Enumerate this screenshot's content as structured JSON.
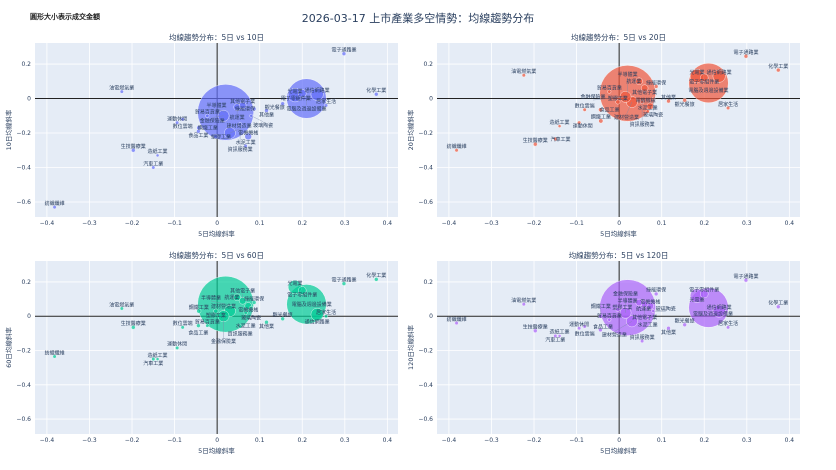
{
  "title": "2026-03-17 上市產業多空情勢：均線趨勢分布",
  "note": "圓形大小表示成交金額",
  "chart_data": {
    "type": "scatter",
    "xlabel": "5日均線斜率",
    "xlim": [
      -0.428,
      0.425
    ],
    "ylim": [
      -0.687,
      0.322
    ],
    "xticks": [
      "−0.4",
      "−0.3",
      "−0.2",
      "−0.1",
      "0",
      "0.1",
      "0.2",
      "0.3",
      "0.4"
    ],
    "xtick_values": [
      -0.4,
      -0.3,
      -0.2,
      -0.1,
      0,
      0.1,
      0.2,
      0.3,
      0.4
    ],
    "yticks": [
      "0.2",
      "0",
      "−0.2",
      "−0.4",
      "−0.6"
    ],
    "ytick_values": [
      0.2,
      0,
      -0.2,
      -0.4,
      -0.6
    ],
    "grid": true,
    "size_meaning": "成交金額 (relative)",
    "panels": [
      {
        "title": "均線趨勢分布：5日 vs 10日",
        "ylabel": "10日均線斜率",
        "key": "y10",
        "color": "#636efa"
      },
      {
        "title": "均線趨勢分布：5日 vs 20日",
        "ylabel": "20日均線斜率",
        "key": "y20",
        "color": "#ef553b"
      },
      {
        "title": "均線趨勢分布：5日 vs 60日",
        "ylabel": "60日均線斜率",
        "key": "y60",
        "color": "#00cc96"
      },
      {
        "title": "均線趨勢分布：5日 vs 120日",
        "ylabel": "120日均線斜率",
        "key": "y120",
        "color": "#ab63fa"
      }
    ],
    "points": [
      {
        "name": "電子通路業",
        "x": 0.298,
        "y10": 0.26,
        "y20": 0.245,
        "y60": 0.19,
        "y120": 0.21,
        "size": 0.5
      },
      {
        "name": "電子零組件業",
        "x": 0.2,
        "y10": 0.03,
        "y20": 0.12,
        "y60": 0.15,
        "y120": 0.13,
        "size": 2
      },
      {
        "name": "光電業",
        "x": 0.183,
        "y10": 0.02,
        "y20": 0.13,
        "y60": 0.17,
        "y120": 0.12,
        "size": 6
      },
      {
        "name": "電腦及週邊設備業",
        "x": 0.21,
        "y10": 0.0,
        "y20": 0.09,
        "y60": 0.07,
        "y120": 0.05,
        "size": 50
      },
      {
        "name": "通信網路業",
        "x": 0.235,
        "y10": 0.025,
        "y20": 0.13,
        "y60": 0.01,
        "y120": 0.03,
        "size": 5
      },
      {
        "name": "化學工業",
        "x": 0.374,
        "y10": 0.025,
        "y20": 0.165,
        "y60": 0.215,
        "y120": 0.055,
        "size": 0.5
      },
      {
        "name": "居家生活",
        "x": 0.256,
        "y10": -0.04,
        "y20": -0.055,
        "y60": 0.0,
        "y120": -0.065,
        "size": 0.4
      },
      {
        "name": "觀光餐旅",
        "x": 0.154,
        "y10": -0.03,
        "y20": -0.01,
        "y60": -0.015,
        "y120": -0.05,
        "size": 0.5
      },
      {
        "name": "其他業",
        "x": 0.116,
        "y10": -0.07,
        "y20": -0.015,
        "y60": -0.035,
        "y120": -0.07,
        "size": 0.5
      },
      {
        "name": "半導體業",
        "x": 0.02,
        "y10": -0.08,
        "y20": 0.03,
        "y60": 0.07,
        "y120": 0.05,
        "size": 100
      },
      {
        "name": "油電燃氣業",
        "x": -0.224,
        "y10": 0.04,
        "y20": 0.135,
        "y60": 0.045,
        "y120": 0.07,
        "size": 0.4
      },
      {
        "name": "生技醫療業",
        "x": -0.197,
        "y10": -0.3,
        "y20": -0.265,
        "y60": -0.065,
        "y120": -0.085,
        "size": 0.5
      },
      {
        "name": "造紙工業",
        "x": -0.14,
        "y10": -0.33,
        "y20": -0.16,
        "y60": -0.25,
        "y120": -0.115,
        "size": 0.3
      },
      {
        "name": "汽車工業",
        "x": -0.15,
        "y10": -0.4,
        "y20": -0.235,
        "y60": -0.25,
        "y120": -0.115,
        "size": 0.4
      },
      {
        "name": "紡織纖維",
        "x": -0.382,
        "y10": -0.63,
        "y20": -0.3,
        "y60": -0.235,
        "y120": -0.04,
        "size": 0.4
      },
      {
        "name": "運動休閒",
        "x": -0.094,
        "y10": -0.14,
        "y20": -0.14,
        "y60": -0.185,
        "y120": -0.07,
        "size": 0.4
      },
      {
        "name": "數位雲端",
        "x": -0.081,
        "y10": -0.12,
        "y20": -0.065,
        "y60": -0.065,
        "y120": -0.06,
        "size": 0.4
      },
      {
        "name": "貿易百貨業",
        "x": -0.023,
        "y10": -0.1,
        "y20": 0.04,
        "y60": -0.055,
        "y120": -0.02,
        "size": 0.4
      },
      {
        "name": "食品工業",
        "x": -0.044,
        "y10": -0.19,
        "y20": -0.065,
        "y60": -0.055,
        "y120": -0.08,
        "size": 0.5
      },
      {
        "name": "鋼鐵工業",
        "x": -0.043,
        "y10": -0.17,
        "y20": -0.13,
        "y60": 0.03,
        "y120": 0.0,
        "size": 0.6
      },
      {
        "name": "綠能環保",
        "x": 0.087,
        "y10": -0.06,
        "y20": 0.07,
        "y60": 0.08,
        "y120": 0.13,
        "size": 0.5
      },
      {
        "name": "電機機械",
        "x": 0.073,
        "y10": -0.22,
        "y20": -0.045,
        "y60": 0.06,
        "y120": 0.06,
        "size": 1.5
      },
      {
        "name": "水泥工業",
        "x": 0.067,
        "y10": -0.275,
        "y20": -0.075,
        "y60": 0.02,
        "y120": -0.01,
        "size": 0.4
      },
      {
        "name": "資訊服務業",
        "x": 0.054,
        "y10": -0.15,
        "y20": -0.02,
        "y60": -0.06,
        "y120": -0.145,
        "size": 0.4
      },
      {
        "name": "建材營造業",
        "x": 0.03,
        "y10": -0.2,
        "y20": -0.02,
        "y60": 0.03,
        "y120": -0.03,
        "size": 4
      },
      {
        "name": "金融保險業",
        "x": 0.015,
        "y10": -0.1,
        "y20": 0.01,
        "y60": 0.0,
        "y120": 0.02,
        "size": 4
      },
      {
        "name": "塑膠工業",
        "x": -0.003,
        "y10": -0.22,
        "y20": -0.02,
        "y60": 0.03,
        "y120": 0.04,
        "size": 0.6
      },
      {
        "name": "航運業",
        "x": 0.047,
        "y10": -0.05,
        "y20": 0.1,
        "y60": 0.11,
        "y120": 0.08,
        "size": 1.5
      },
      {
        "name": "其他電子業",
        "x": 0.06,
        "y10": -0.04,
        "y20": 0.06,
        "y60": 0.09,
        "y120": 0.07,
        "size": 1.5
      },
      {
        "name": "玻璃陶瓷",
        "x": 0.08,
        "y10": -0.1,
        "y20": 0.0,
        "y60": 0.05,
        "y120": 0.03,
        "size": 0.3
      }
    ]
  }
}
